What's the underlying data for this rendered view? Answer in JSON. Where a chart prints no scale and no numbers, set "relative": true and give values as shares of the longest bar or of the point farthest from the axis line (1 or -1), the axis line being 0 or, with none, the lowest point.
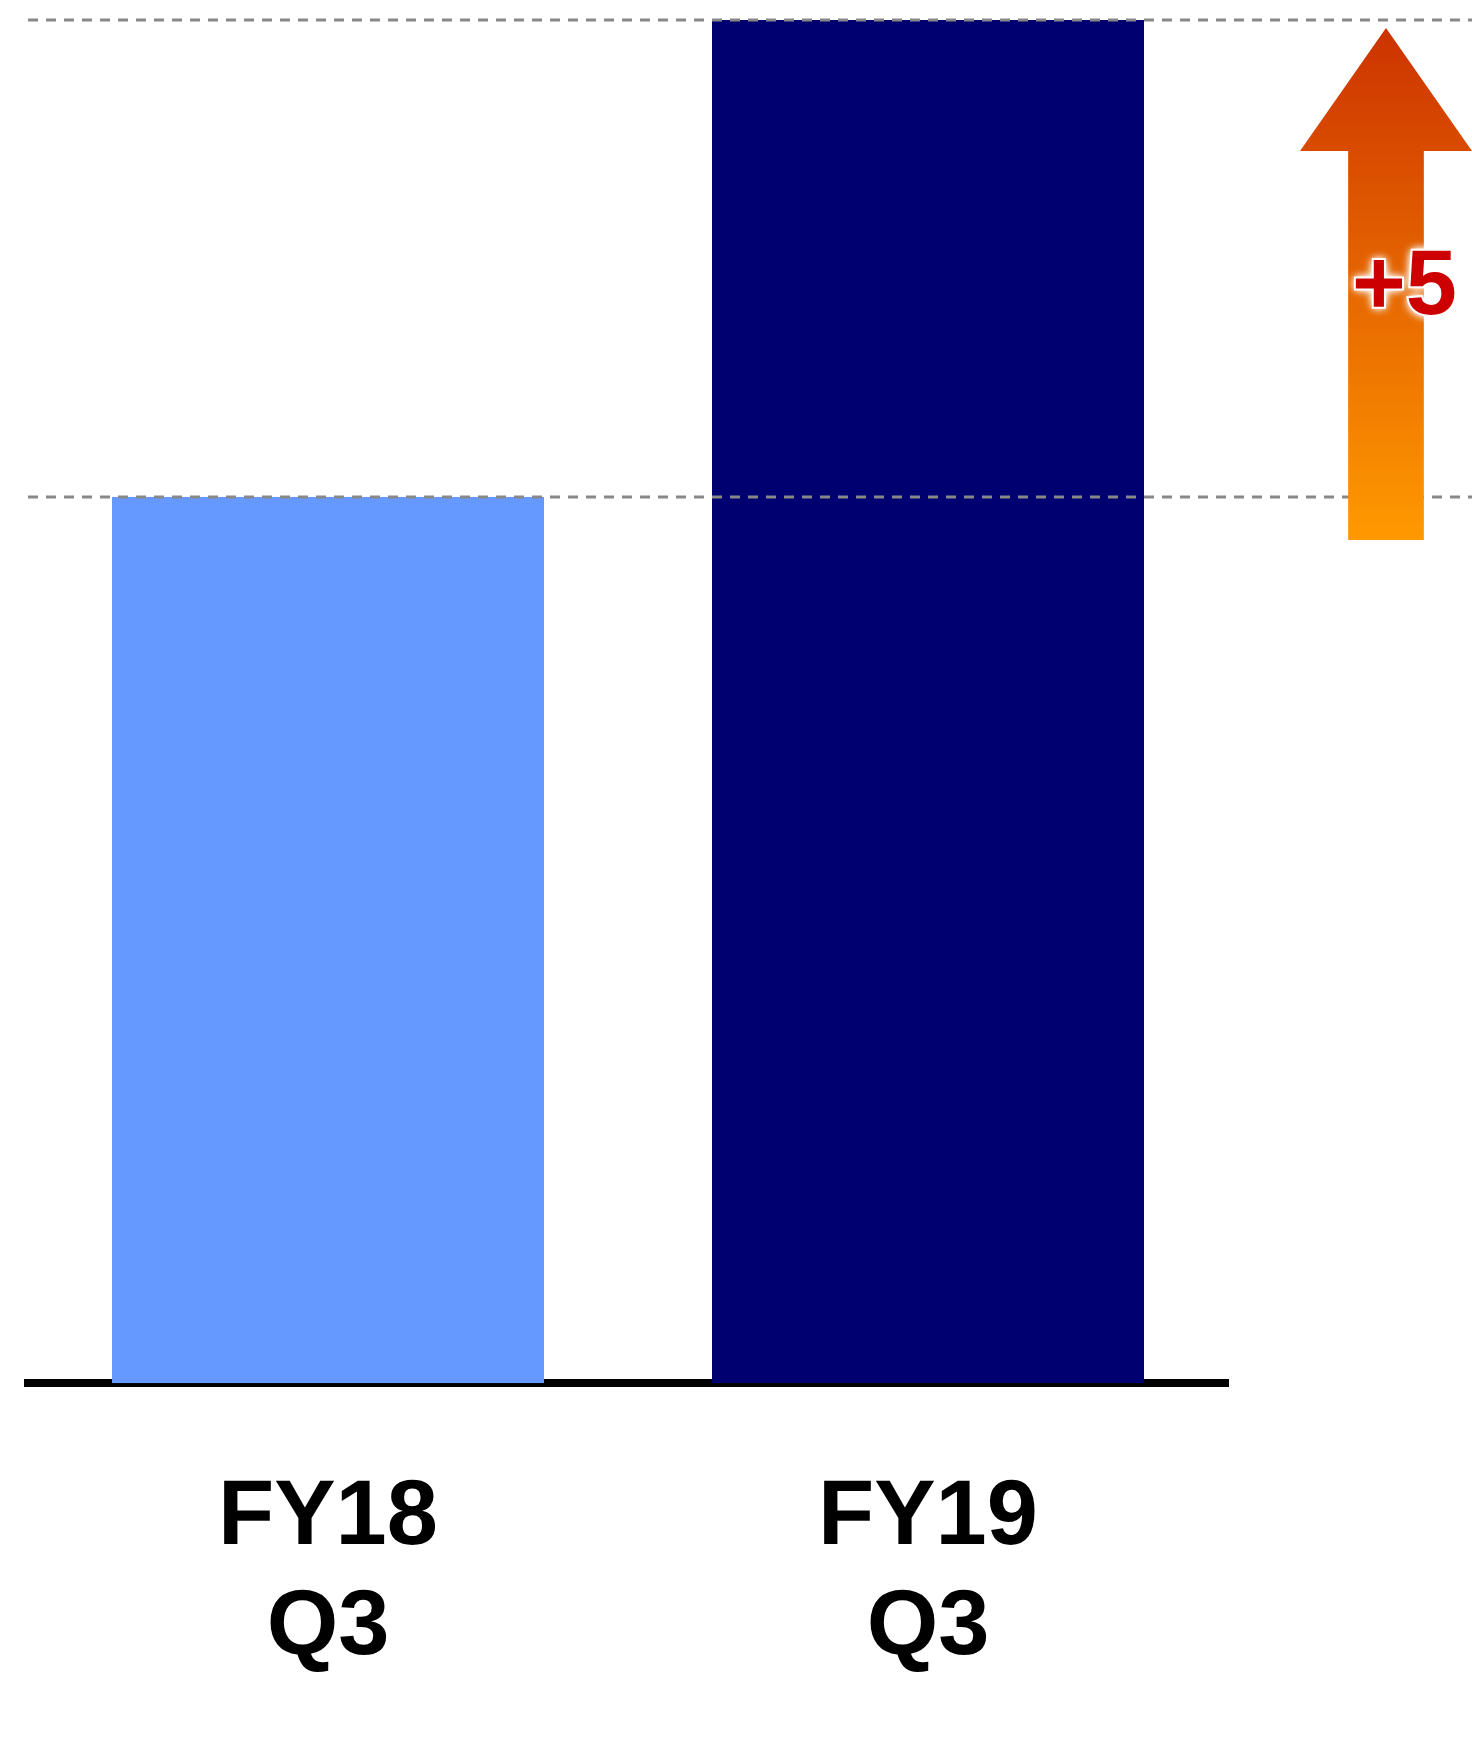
{
  "chart_data": {
    "type": "bar",
    "relative": true,
    "categories": [
      "FY18 Q3",
      "FY19 Q3"
    ],
    "values": [
      0.65,
      1
    ],
    "colors": [
      "#6699ff",
      "#000070"
    ],
    "ref_lines": [
      {
        "axis": "y",
        "value": 0.65,
        "color": "#888888",
        "line_style": "dashed"
      },
      {
        "axis": "y",
        "value": 1,
        "color": "#888888",
        "line_style": "dashed"
      }
    ],
    "annotations": [
      "+5"
    ],
    "legend": false
  }
}
